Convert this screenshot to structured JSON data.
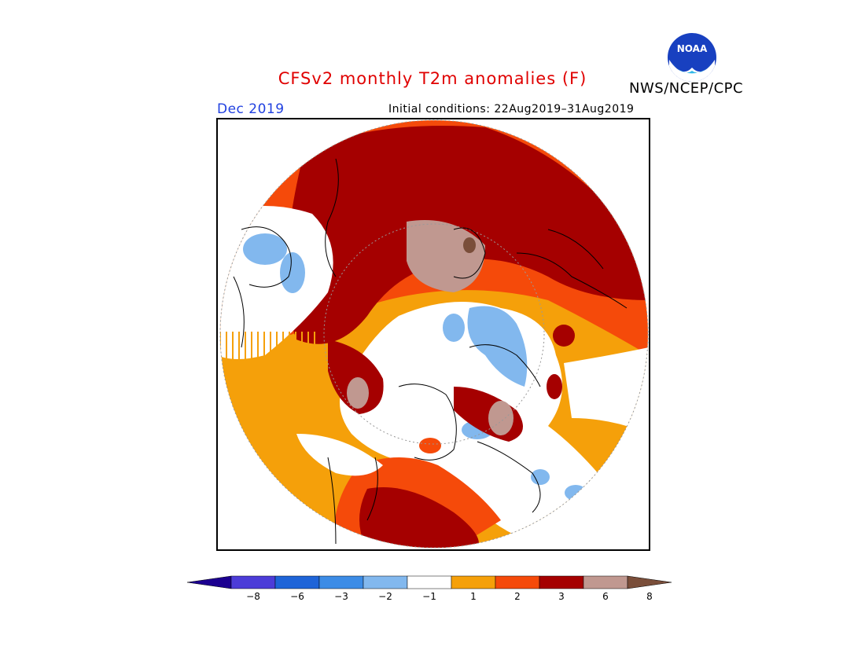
{
  "title": "CFSv2 monthly T2m anomalies (F)",
  "agency": "NWS/NCEP/CPC",
  "logo_text": "NOAA",
  "forecast_month": "Dec 2019",
  "initial_conditions": "Initial conditions: 22Aug2019–31Aug2019",
  "legend": {
    "ticks": [
      "−8",
      "−6",
      "−3",
      "−2",
      "−1",
      "1",
      "2",
      "3",
      "6",
      "8"
    ],
    "colors": [
      "#1c0090",
      "#4c3cd8",
      "#1e64d8",
      "#3c8ce6",
      "#82b8ee",
      "#ffffff",
      "#f5a00a",
      "#f54a0a",
      "#a50000",
      "#c09890",
      "#7a4e3a"
    ]
  },
  "colors": {
    "title": "#e00000",
    "month": "#2040e0",
    "frame": "#000000"
  }
}
